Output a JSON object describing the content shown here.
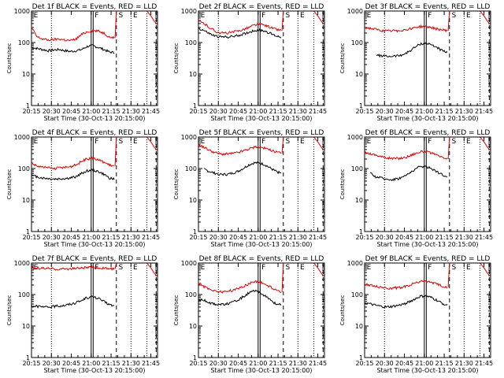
{
  "chart_data": [
    {
      "type": "line",
      "title": "Det 1f BLACK = Events, RED = LLD",
      "xlabel": "Start Time (30-Oct-13 20:15:00)",
      "ylabel": "Counts/sec",
      "series": [
        {
          "name": "BLACK = Events",
          "color": "#000000",
          "values": [
            70,
            65,
            60,
            55,
            58,
            60,
            55,
            52,
            55,
            60,
            75,
            80,
            70,
            60,
            50,
            48
          ]
        },
        {
          "name": "RED = LLD",
          "color": "#e00000",
          "values": [
            300,
            150,
            130,
            120,
            125,
            130,
            120,
            115,
            130,
            180,
            220,
            240,
            230,
            200,
            150,
            140
          ]
        }
      ]
    },
    {
      "type": "line",
      "title": "Det 2f BLACK = Events, RED = LLD",
      "xlabel": "Start Time (30-Oct-13 20:15:00)",
      "ylabel": "Counts/sec",
      "series": [
        {
          "name": "BLACK = Events",
          "color": "#000000",
          "values": [
            280,
            240,
            190,
            160,
            150,
            150,
            155,
            165,
            185,
            210,
            240,
            250,
            230,
            190,
            160,
            150
          ]
        },
        {
          "name": "RED = LLD",
          "color": "#e00000",
          "values": [
            480,
            400,
            300,
            230,
            200,
            200,
            210,
            230,
            260,
            300,
            360,
            380,
            350,
            300,
            260,
            240
          ]
        }
      ]
    },
    {
      "type": "line",
      "title": "Det 3f BLACK = Events, RED = LLD",
      "xlabel": "Start Time (30-Oct-13 20:15:00)",
      "ylabel": "Counts/sec",
      "series": [
        {
          "name": "BLACK = Events",
          "color": "#000000",
          "values": [
            null,
            null,
            40,
            38,
            36,
            37,
            38,
            42,
            52,
            70,
            90,
            95,
            85,
            70,
            55,
            45
          ]
        },
        {
          "name": "RED = LLD",
          "color": "#e00000",
          "values": [
            300,
            280,
            260,
            240,
            230,
            235,
            240,
            250,
            270,
            300,
            320,
            320,
            300,
            270,
            250,
            240
          ]
        }
      ]
    },
    {
      "type": "line",
      "title": "Det 4f BLACK = Events, RED = LLD",
      "xlabel": "Start Time (30-Oct-13 20:15:00)",
      "ylabel": "Counts/sec",
      "series": [
        {
          "name": "BLACK = Events",
          "color": "#000000",
          "values": [
            60,
            55,
            50,
            48,
            46,
            47,
            48,
            50,
            55,
            70,
            85,
            90,
            80,
            65,
            50,
            45
          ]
        },
        {
          "name": "RED = LLD",
          "color": "#e00000",
          "values": [
            150,
            120,
            110,
            105,
            100,
            105,
            110,
            115,
            130,
            170,
            200,
            210,
            190,
            160,
            130,
            120
          ]
        }
      ]
    },
    {
      "type": "line",
      "title": "Det 5f BLACK = Events, RED = LLD",
      "xlabel": "Start Time (30-Oct-13 20:15:00)",
      "ylabel": "Counts/sec",
      "series": [
        {
          "name": "BLACK = Events",
          "color": "#000000",
          "values": [
            null,
            95,
            80,
            70,
            65,
            65,
            70,
            80,
            100,
            130,
            150,
            150,
            130,
            100,
            80,
            70
          ]
        },
        {
          "name": "RED = LLD",
          "color": "#e00000",
          "values": [
            550,
            480,
            380,
            320,
            290,
            290,
            300,
            320,
            360,
            420,
            470,
            480,
            440,
            380,
            330,
            300
          ]
        }
      ]
    },
    {
      "type": "line",
      "title": "Det 6f BLACK = Events, RED = LLD",
      "xlabel": "Start Time (30-Oct-13 20:15:00)",
      "ylabel": "Counts/sec",
      "series": [
        {
          "name": "BLACK = Events",
          "color": "#000000",
          "values": [
            null,
            70,
            55,
            50,
            45,
            45,
            48,
            55,
            70,
            95,
            115,
            115,
            100,
            80,
            62,
            55
          ]
        },
        {
          "name": "RED = LLD",
          "color": "#e00000",
          "values": [
            320,
            300,
            270,
            240,
            220,
            210,
            210,
            220,
            250,
            300,
            340,
            340,
            310,
            260,
            220,
            200
          ]
        }
      ]
    },
    {
      "type": "line",
      "title": "Det 7f BLACK = Events, RED = LLD",
      "xlabel": "Start Time (30-Oct-13 20:15:00)",
      "ylabel": "Counts/sec",
      "series": [
        {
          "name": "BLACK = Events",
          "color": "#000000",
          "values": [
            45,
            42,
            40,
            40,
            42,
            44,
            46,
            50,
            55,
            65,
            80,
            85,
            75,
            60,
            48,
            42
          ]
        },
        {
          "name": "RED = LLD",
          "color": "#e00000",
          "values": [
            700,
            690,
            680,
            660,
            650,
            640,
            650,
            660,
            680,
            700,
            720,
            720,
            700,
            680,
            660,
            650
          ]
        }
      ]
    },
    {
      "type": "line",
      "title": "Det 8f BLACK = Events, RED = LLD",
      "xlabel": "Start Time (30-Oct-13 20:15:00)",
      "ylabel": "Counts/sec",
      "series": [
        {
          "name": "BLACK = Events",
          "color": "#000000",
          "values": [
            70,
            65,
            55,
            50,
            48,
            50,
            55,
            65,
            85,
            110,
            130,
            120,
            90,
            65,
            50,
            45
          ]
        },
        {
          "name": "RED = LLD",
          "color": "#e00000",
          "values": [
            230,
            180,
            150,
            130,
            120,
            125,
            135,
            150,
            180,
            220,
            260,
            250,
            210,
            170,
            140,
            120
          ]
        }
      ]
    },
    {
      "type": "line",
      "title": "Det 9f BLACK = Events, RED = LLD",
      "xlabel": "Start Time (30-Oct-13 20:15:00)",
      "ylabel": "Counts/sec",
      "series": [
        {
          "name": "BLACK = Events",
          "color": "#000000",
          "values": [
            55,
            50,
            45,
            42,
            40,
            42,
            45,
            50,
            58,
            72,
            88,
            90,
            80,
            65,
            52,
            45
          ]
        },
        {
          "name": "RED = LLD",
          "color": "#e00000",
          "values": [
            220,
            200,
            180,
            170,
            160,
            160,
            165,
            175,
            195,
            230,
            260,
            265,
            240,
            210,
            185,
            170
          ]
        }
      ]
    }
  ],
  "shared": {
    "x_ticks": [
      "20:15",
      "20:30",
      "20:45",
      "21:00",
      "21:15",
      "21:30",
      "21:45"
    ],
    "x_range_minutes": [
      0,
      95
    ],
    "y_scale": "log",
    "y_range": [
      1,
      1000
    ],
    "y_ticks": [
      "1",
      "10",
      "100",
      "1000"
    ],
    "markers": {
      "E": "E",
      "F": "F",
      "S": "S"
    }
  }
}
